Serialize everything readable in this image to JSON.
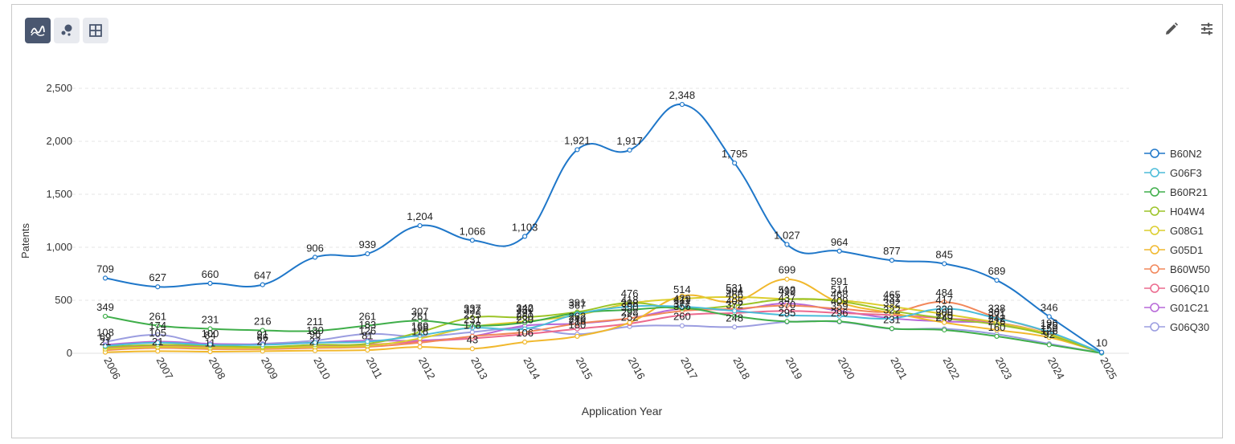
{
  "toolbar": {
    "left": [
      {
        "name": "line-chart-view-button",
        "icon": "line-chart-icon",
        "active": true
      },
      {
        "name": "bubble-chart-view-button",
        "icon": "bubble-chart-icon",
        "active": false
      },
      {
        "name": "table-view-button",
        "icon": "table-grid-icon",
        "active": false
      }
    ],
    "right": [
      {
        "name": "edit-button",
        "icon": "pencil-icon"
      },
      {
        "name": "settings-button",
        "icon": "sliders-icon"
      }
    ]
  },
  "chart_data": {
    "type": "line",
    "title": "",
    "xlabel": "Application Year",
    "ylabel": "Patents",
    "ylim": [
      0,
      2500
    ],
    "yticks": [
      0,
      500,
      1000,
      1500,
      2000,
      2500
    ],
    "ytick_labels": [
      "0",
      "500",
      "1,000",
      "1,500",
      "2,000",
      "2,500"
    ],
    "grid": true,
    "legend": "right",
    "categories": [
      "2006",
      "2007",
      "2008",
      "2009",
      "2010",
      "2011",
      "2012",
      "2013",
      "2014",
      "2015",
      "2016",
      "2017",
      "2018",
      "2019",
      "2020",
      "2021",
      "2022",
      "2023",
      "2024",
      "2025"
    ],
    "series": [
      {
        "name": "B60N2",
        "color": "#1f77c9",
        "values": [
          709,
          627,
          660,
          647,
          906,
          939,
          1204,
          1066,
          1103,
          1921,
          1917,
          2348,
          1795,
          1027,
          964,
          877,
          845,
          689,
          346,
          10
        ]
      },
      {
        "name": "G06F3",
        "color": "#4bbcd9",
        "values": [
          70,
          100,
          80,
          80,
          100,
          110,
          170,
          240,
          230,
          370,
          440,
          440,
          400,
          360,
          350,
          330,
          420,
          330,
          200,
          5
        ]
      },
      {
        "name": "B60R21",
        "color": "#3fae4a",
        "values": [
          349,
          261,
          231,
          216,
          211,
          261,
          307,
          260,
          290,
          380,
          410,
          430,
          350,
          300,
          300,
          233,
          220,
          160,
          80,
          2
        ]
      },
      {
        "name": "H04W4",
        "color": "#9cc427",
        "values": [
          60,
          80,
          70,
          60,
          80,
          90,
          200,
          337,
          340,
          390,
          476,
          420,
          450,
          510,
          490,
          400,
          330,
          270,
          170,
          3
        ]
      },
      {
        "name": "G08G1",
        "color": "#dccd2c",
        "values": [
          40,
          60,
          50,
          50,
          60,
          70,
          140,
          250,
          300,
          360,
          470,
          514,
          531,
          512,
          500,
          440,
          370,
          290,
          180,
          4
        ]
      },
      {
        "name": "G05D1",
        "color": "#f1b82d",
        "values": [
          10,
          20,
          15,
          20,
          25,
          30,
          60,
          43,
          106,
          160,
          290,
          540,
          490,
          699,
          480,
          380,
          290,
          220,
          150,
          5
        ]
      },
      {
        "name": "B60W50",
        "color": "#f2875a",
        "values": [
          30,
          50,
          40,
          40,
          50,
          60,
          100,
          160,
          200,
          280,
          330,
          400,
          420,
          450,
          420,
          392,
          484,
          338,
          196,
          6
        ]
      },
      {
        "name": "G06Q10",
        "color": "#ec6a8e",
        "values": [
          50,
          70,
          60,
          55,
          65,
          80,
          110,
          140,
          180,
          230,
          280,
          360,
          380,
          400,
          380,
          360,
          330,
          290,
          180,
          4
        ]
      },
      {
        "name": "G01C21",
        "color": "#b768d8",
        "values": [
          80,
          110,
          90,
          85,
          100,
          120,
          120,
          160,
          260,
          280,
          330,
          420,
          410,
          470,
          400,
          330,
          300,
          280,
          170,
          5
        ]
      },
      {
        "name": "G06Q30",
        "color": "#9b9de0",
        "values": [
          108,
          174,
          80,
          90,
          120,
          183,
          158,
          200,
          240,
          180,
          252,
          260,
          248,
          295,
          296,
          231,
          231,
          180,
          90,
          3
        ]
      }
    ],
    "point_labels": [
      {
        "x": "2006",
        "y": 709,
        "text": "709"
      },
      {
        "x": "2007",
        "y": 627,
        "text": "627"
      },
      {
        "x": "2008",
        "y": 660,
        "text": "660"
      },
      {
        "x": "2009",
        "y": 647,
        "text": "647"
      },
      {
        "x": "2010",
        "y": 906,
        "text": "906"
      },
      {
        "x": "2011",
        "y": 939,
        "text": "939"
      },
      {
        "x": "2012",
        "y": 1204,
        "text": "1,204"
      },
      {
        "x": "2013",
        "y": 1066,
        "text": "1,066"
      },
      {
        "x": "2014",
        "y": 1103,
        "text": "1,103"
      },
      {
        "x": "2015",
        "y": 1921,
        "text": "1,921"
      },
      {
        "x": "2016",
        "y": 1917,
        "text": "1,917"
      },
      {
        "x": "2017",
        "y": 2348,
        "text": "2,348"
      },
      {
        "x": "2018",
        "y": 1795,
        "text": "1,795"
      },
      {
        "x": "2019",
        "y": 1027,
        "text": "1,027"
      },
      {
        "x": "2020",
        "y": 964,
        "text": "964"
      },
      {
        "x": "2021",
        "y": 877,
        "text": "877"
      },
      {
        "x": "2022",
        "y": 845,
        "text": "845"
      },
      {
        "x": "2023",
        "y": 689,
        "text": "689"
      },
      {
        "x": "2024",
        "y": 346,
        "text": "346"
      },
      {
        "x": "2025",
        "y": 10,
        "text": "10"
      },
      {
        "x": "2006",
        "y": 349,
        "text": "349"
      },
      {
        "x": "2006",
        "y": 108,
        "text": "108"
      },
      {
        "x": "2006",
        "y": 69,
        "text": "69"
      },
      {
        "x": "2006",
        "y": 21,
        "text": "21"
      },
      {
        "x": "2007",
        "y": 261,
        "text": "261"
      },
      {
        "x": "2007",
        "y": 174,
        "text": "174"
      },
      {
        "x": "2007",
        "y": 105,
        "text": "105"
      },
      {
        "x": "2007",
        "y": 21,
        "text": "21"
      },
      {
        "x": "2008",
        "y": 231,
        "text": "231"
      },
      {
        "x": "2008",
        "y": 100,
        "text": "100"
      },
      {
        "x": "2008",
        "y": 84,
        "text": "84"
      },
      {
        "x": "2008",
        "y": 11,
        "text": "11"
      },
      {
        "x": "2009",
        "y": 216,
        "text": "216"
      },
      {
        "x": "2009",
        "y": 91,
        "text": "91"
      },
      {
        "x": "2009",
        "y": 66,
        "text": "66"
      },
      {
        "x": "2009",
        "y": 27,
        "text": "27"
      },
      {
        "x": "2010",
        "y": 211,
        "text": "211"
      },
      {
        "x": "2010",
        "y": 130,
        "text": "130"
      },
      {
        "x": "2010",
        "y": 96,
        "text": "96"
      },
      {
        "x": "2010",
        "y": 27,
        "text": "27"
      },
      {
        "x": "2011",
        "y": 261,
        "text": "261"
      },
      {
        "x": "2011",
        "y": 183,
        "text": "183"
      },
      {
        "x": "2011",
        "y": 126,
        "text": "126"
      },
      {
        "x": "2011",
        "y": 81,
        "text": "81"
      },
      {
        "x": "2012",
        "y": 307,
        "text": "307"
      },
      {
        "x": "2012",
        "y": 261,
        "text": "261"
      },
      {
        "x": "2012",
        "y": 169,
        "text": "169"
      },
      {
        "x": "2012",
        "y": 156,
        "text": "156"
      },
      {
        "x": "2012",
        "y": 116,
        "text": "116"
      },
      {
        "x": "2013",
        "y": 337,
        "text": "337"
      },
      {
        "x": "2013",
        "y": 322,
        "text": "322"
      },
      {
        "x": "2013",
        "y": 275,
        "text": "275"
      },
      {
        "x": "2013",
        "y": 231,
        "text": "231"
      },
      {
        "x": "2013",
        "y": 178,
        "text": "178"
      },
      {
        "x": "2013",
        "y": 43,
        "text": "43"
      },
      {
        "x": "2014",
        "y": 342,
        "text": "342"
      },
      {
        "x": "2014",
        "y": 330,
        "text": "330"
      },
      {
        "x": "2014",
        "y": 291,
        "text": "291"
      },
      {
        "x": "2014",
        "y": 260,
        "text": "260"
      },
      {
        "x": "2014",
        "y": 230,
        "text": "230"
      },
      {
        "x": "2014",
        "y": 106,
        "text": "106"
      },
      {
        "x": "2015",
        "y": 391,
        "text": "391"
      },
      {
        "x": "2015",
        "y": 367,
        "text": "367"
      },
      {
        "x": "2015",
        "y": 262,
        "text": "262"
      },
      {
        "x": "2015",
        "y": 240,
        "text": "240"
      },
      {
        "x": "2015",
        "y": 216,
        "text": "216"
      },
      {
        "x": "2015",
        "y": 180,
        "text": "180"
      },
      {
        "x": "2016",
        "y": 476,
        "text": "476"
      },
      {
        "x": "2016",
        "y": 418,
        "text": "418"
      },
      {
        "x": "2016",
        "y": 388,
        "text": "388"
      },
      {
        "x": "2016",
        "y": 350,
        "text": "350"
      },
      {
        "x": "2016",
        "y": 298,
        "text": "298"
      },
      {
        "x": "2016",
        "y": 252,
        "text": "252"
      },
      {
        "x": "2017",
        "y": 514,
        "text": "514"
      },
      {
        "x": "2017",
        "y": 429,
        "text": "429"
      },
      {
        "x": "2017",
        "y": 411,
        "text": "411"
      },
      {
        "x": "2017",
        "y": 377,
        "text": "377"
      },
      {
        "x": "2017",
        "y": 356,
        "text": "356"
      },
      {
        "x": "2017",
        "y": 260,
        "text": "260"
      },
      {
        "x": "2018",
        "y": 531,
        "text": "531"
      },
      {
        "x": "2018",
        "y": 504,
        "text": "504"
      },
      {
        "x": "2018",
        "y": 466,
        "text": "466"
      },
      {
        "x": "2018",
        "y": 405,
        "text": "405"
      },
      {
        "x": "2018",
        "y": 372,
        "text": "372"
      },
      {
        "x": "2018",
        "y": 248,
        "text": "248"
      },
      {
        "x": "2019",
        "y": 699,
        "text": "699"
      },
      {
        "x": "2019",
        "y": 512,
        "text": "512"
      },
      {
        "x": "2019",
        "y": 499,
        "text": "499"
      },
      {
        "x": "2019",
        "y": 437,
        "text": "437"
      },
      {
        "x": "2019",
        "y": 370,
        "text": "370"
      },
      {
        "x": "2019",
        "y": 295,
        "text": "295"
      },
      {
        "x": "2020",
        "y": 591,
        "text": "591"
      },
      {
        "x": "2020",
        "y": 514,
        "text": "514"
      },
      {
        "x": "2020",
        "y": 468,
        "text": "468"
      },
      {
        "x": "2020",
        "y": 409,
        "text": "409"
      },
      {
        "x": "2020",
        "y": 359,
        "text": "359"
      },
      {
        "x": "2020",
        "y": 296,
        "text": "296"
      },
      {
        "x": "2021",
        "y": 465,
        "text": "465"
      },
      {
        "x": "2021",
        "y": 431,
        "text": "431"
      },
      {
        "x": "2021",
        "y": 392,
        "text": "392"
      },
      {
        "x": "2021",
        "y": 322,
        "text": "322"
      },
      {
        "x": "2021",
        "y": 231,
        "text": "231"
      },
      {
        "x": "2022",
        "y": 484,
        "text": "484"
      },
      {
        "x": "2022",
        "y": 417,
        "text": "417"
      },
      {
        "x": "2022",
        "y": 330,
        "text": "330"
      },
      {
        "x": "2022",
        "y": 300,
        "text": "300"
      },
      {
        "x": "2022",
        "y": 270,
        "text": "270"
      },
      {
        "x": "2022",
        "y": 249,
        "text": "249"
      },
      {
        "x": "2023",
        "y": 338,
        "text": "338"
      },
      {
        "x": "2023",
        "y": 301,
        "text": "301"
      },
      {
        "x": "2023",
        "y": 271,
        "text": "271"
      },
      {
        "x": "2023",
        "y": 242,
        "text": "242"
      },
      {
        "x": "2023",
        "y": 216,
        "text": "216"
      },
      {
        "x": "2023",
        "y": 160,
        "text": "160"
      },
      {
        "x": "2024",
        "y": 196,
        "text": "196"
      },
      {
        "x": "2024",
        "y": 175,
        "text": "175"
      },
      {
        "x": "2024",
        "y": 150,
        "text": "150"
      },
      {
        "x": "2024",
        "y": 126,
        "text": "126"
      },
      {
        "x": "2024",
        "y": 92,
        "text": "92"
      }
    ]
  }
}
